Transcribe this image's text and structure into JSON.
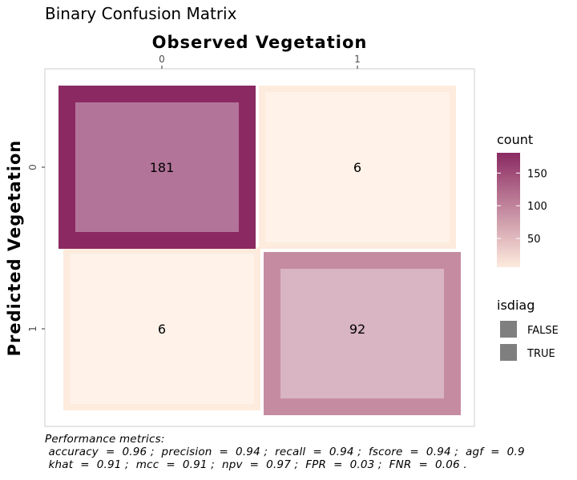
{
  "chart_data": {
    "type": "heatmap",
    "title": "Binary Confusion Matrix",
    "xlabel": "Observed Vegetation",
    "ylabel": "Predicted Vegetation",
    "x_categories": [
      "0",
      "1"
    ],
    "y_categories": [
      "0",
      "1"
    ],
    "cells": [
      {
        "observed": "0",
        "predicted": "0",
        "count": 181,
        "isdiag": true
      },
      {
        "observed": "1",
        "predicted": "0",
        "count": 6,
        "isdiag": false
      },
      {
        "observed": "0",
        "predicted": "1",
        "count": 6,
        "isdiag": false
      },
      {
        "observed": "1",
        "predicted": "1",
        "count": 92,
        "isdiag": true
      }
    ],
    "x_axis_position": "top",
    "grid": false,
    "legend": {
      "count": {
        "title": "count",
        "breaks": [
          50,
          100,
          150
        ],
        "range": [
          6,
          181
        ],
        "low_color": "#FDEBDD",
        "high_color": "#8B2A62"
      },
      "isdiag": {
        "title": "isdiag",
        "entries": [
          "FALSE",
          "TRUE"
        ],
        "swatch_color": "#7f7f7f"
      },
      "placement": "right"
    },
    "caption": [
      "Performance metrics:",
      " accuracy  =  0.96 ;  precision  =  0.94 ;  recall  =  0.94 ;  fscore  =  0.94 ;  agf  =  0.9",
      " khat  =  0.91 ;  mcc  =  0.91 ;  npv  =  0.97 ;  FPR  =  0.03 ;  FNR  =  0.06 ."
    ]
  }
}
